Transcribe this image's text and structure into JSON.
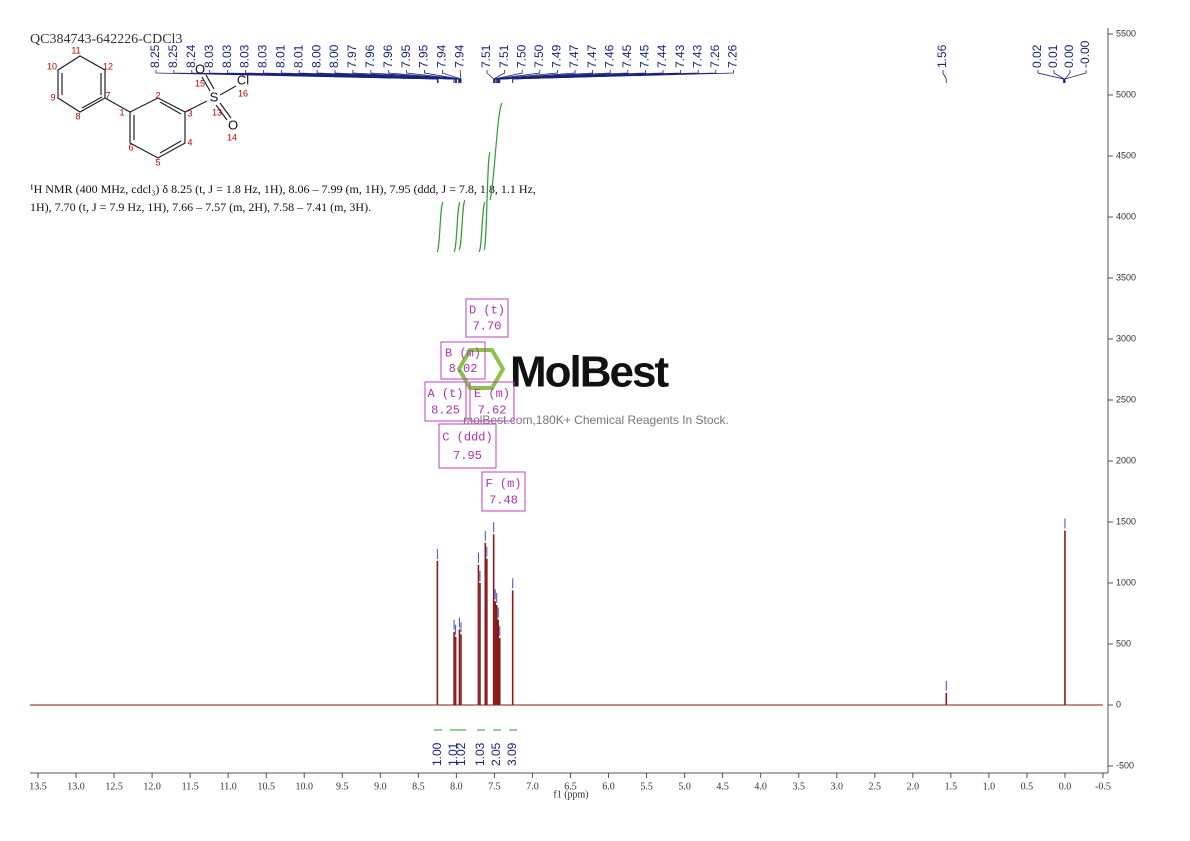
{
  "chart_data": {
    "type": "nmr",
    "title": "QC384743-642226-CDCl3",
    "x_label": "f1 (ppm)",
    "description": [
      "¹H NMR (400 MHz, cdcl₃) δ 8.25 (t, J = 1.8 Hz, 1H), 8.06 – 7.99 (m, 1H), 7.95 (ddd, J = 7.8, 1.8, 1.1 Hz,",
      "1H), 7.70 (t, J = 7.9 Hz, 1H), 7.66 – 7.57 (m, 2H), 7.58 – 7.41 (m, 3H)."
    ],
    "watermark": {
      "brand": "MolBest",
      "tagline": "molBest.com,180K+ Chemical Reagents In Stock."
    },
    "structure": {
      "atom_numbers": [
        "1",
        "2",
        "3",
        "4",
        "5",
        "6",
        "7",
        "8",
        "9",
        "10",
        "11",
        "12",
        "13",
        "14",
        "15",
        "16"
      ],
      "atom_symbols": [
        "O",
        "S",
        "Cl",
        "O"
      ]
    },
    "xlim": [
      13.5,
      -0.5
    ],
    "ylim": [
      -500,
      5500
    ],
    "xticks": [
      13.5,
      {
        "value": 13,
        "label": "13.0"
      },
      12.5,
      {
        "value": 12,
        "label": "12.0"
      },
      11.5,
      {
        "value": 11,
        "label": "11.0"
      },
      10.5,
      {
        "value": 10,
        "label": "10.0"
      },
      9.5,
      {
        "value": 9,
        "label": "9.0"
      },
      8.5,
      {
        "value": 8,
        "label": "8.0"
      },
      7.5,
      {
        "value": 7,
        "label": "7.0"
      },
      6.5,
      {
        "value": 6,
        "label": "6.0"
      },
      5.5,
      {
        "value": 5,
        "label": "5.0"
      },
      4.5,
      {
        "value": 4,
        "label": "4.0"
      },
      3.5,
      {
        "value": 3,
        "label": "3.0"
      },
      2.5,
      {
        "value": 2,
        "label": "2.0"
      },
      1.5,
      {
        "value": 1,
        "label": "1.0"
      },
      0.5,
      {
        "value": 0,
        "label": "0.0"
      },
      -0.5
    ],
    "yticks": [
      -500,
      0,
      500,
      1000,
      1500,
      2000,
      2500,
      3000,
      3500,
      4000,
      4500,
      5000,
      5500
    ],
    "color": "#8b1a1a",
    "peaks": {
      "x": [
        8.25,
        8.03,
        8.01,
        7.96,
        7.94,
        7.71,
        7.69,
        7.62,
        7.6,
        7.51,
        7.49,
        7.47,
        7.45,
        7.43,
        7.26,
        1.56,
        0.0
      ],
      "values": [
        1180,
        600,
        560,
        620,
        580,
        1150,
        1000,
        1330,
        1200,
        1400,
        850,
        820,
        700,
        550,
        940,
        100,
        1430
      ]
    },
    "peak_labels": [
      8.25,
      8.25,
      8.24,
      8.03,
      8.03,
      8.03,
      8.03,
      8.01,
      8.01,
      {
        "value": 8,
        "label": "8.00"
      },
      {
        "value": 8,
        "label": "8.00"
      },
      7.97,
      7.96,
      7.96,
      7.95,
      7.95,
      7.94,
      7.94,
      7.51,
      7.51,
      {
        "value": 7.5,
        "label": "7.50"
      },
      {
        "value": 7.5,
        "label": "7.50"
      },
      7.49,
      7.47,
      7.47,
      7.46,
      7.45,
      7.45,
      7.44,
      7.43,
      7.43,
      7.26,
      7.26,
      1.56,
      0.02,
      0.01,
      {
        "value": 0,
        "label": "0.00"
      },
      {
        "value": 0,
        "label": "-0.00"
      }
    ],
    "multiplets": [
      {
        "name": "A (t)",
        "shift": 8.25
      },
      {
        "name": "B (m)",
        "shift": 8.02
      },
      {
        "name": "C (ddd)",
        "shift": 7.95
      },
      {
        "name": "D (t)",
        "shift": {
          "value": 7.7,
          "label": "7.70"
        }
      },
      {
        "name": "E (m)",
        "shift": 7.62
      },
      {
        "name": "F (m)",
        "shift": 7.48
      }
    ],
    "integrals": [
      {
        "value": 1,
        "label": "1.00"
      },
      1.01,
      1.02,
      1.03,
      2.05,
      3.09
    ]
  }
}
